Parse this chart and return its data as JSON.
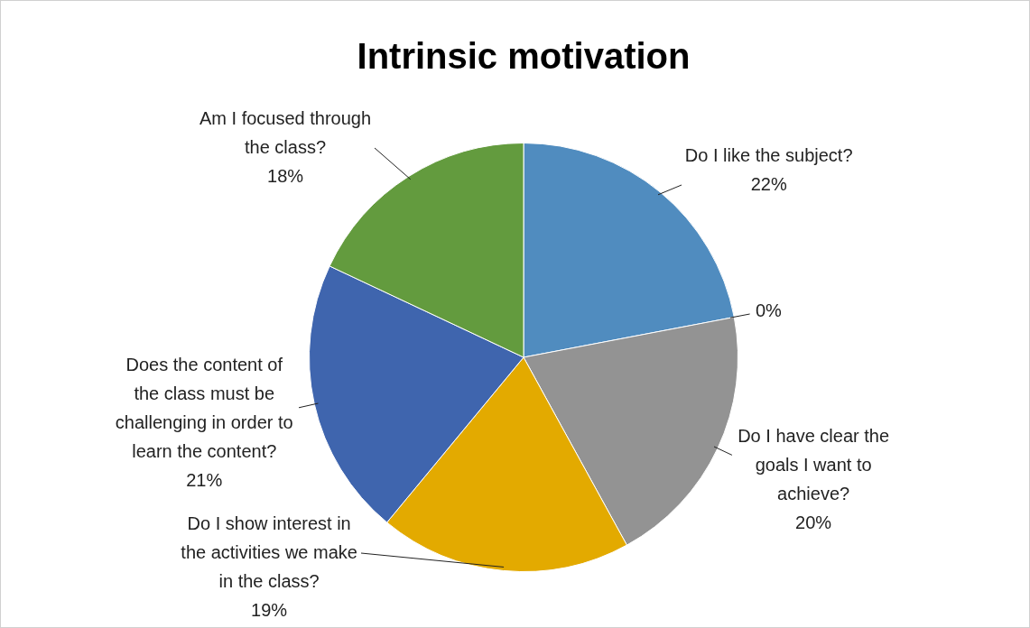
{
  "chart_data": {
    "type": "pie",
    "title": "Intrinsic motivation",
    "categories": [
      "Do I like the subject?",
      null,
      "Do I have clear the goals I want to achieve?",
      "Do I show interest in the activities we make in the class?",
      "Does the content of the class must be challenging in order to learn the content?",
      "Am I focused through the class?"
    ],
    "values": [
      22,
      0,
      20,
      19,
      21,
      18
    ],
    "value_labels": [
      "22%",
      "0%",
      "20%",
      "19%",
      "21%",
      "18%"
    ],
    "colors": [
      "#508cbf",
      "#ed7d31",
      "#939393",
      "#e3aa00",
      "#3f65ae",
      "#639b3e"
    ],
    "legend": false
  }
}
